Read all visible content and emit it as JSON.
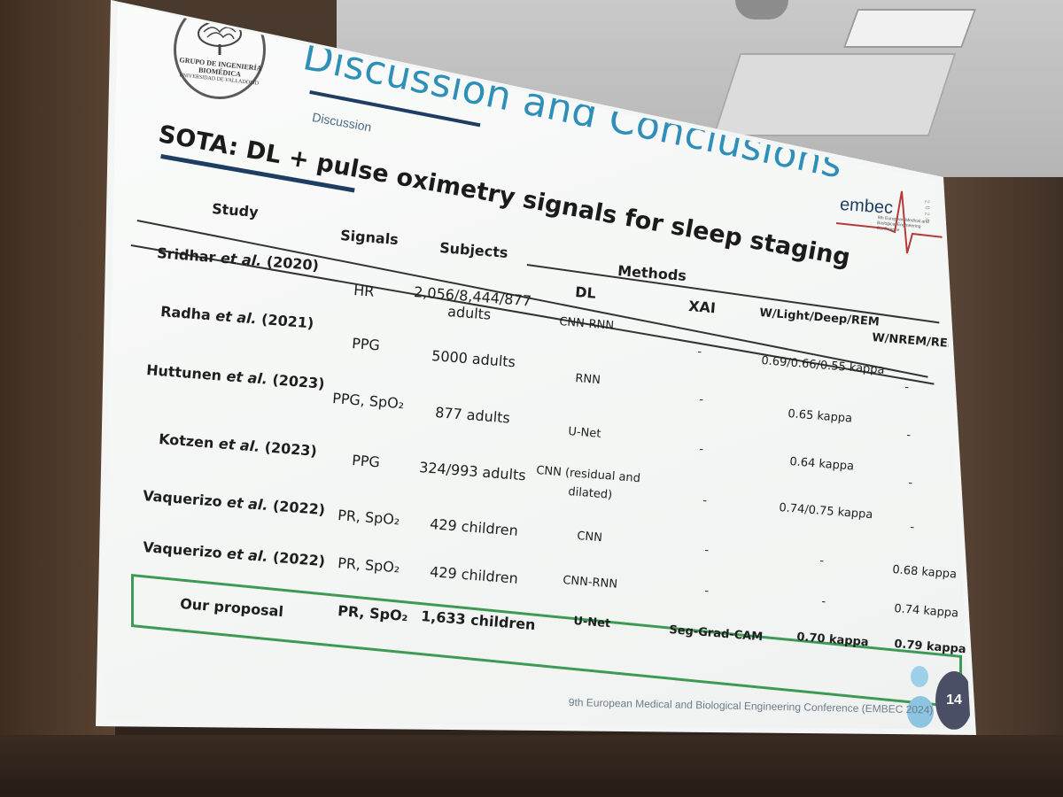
{
  "slide": {
    "title": "Discussion and Conclusions",
    "section": "Discussion",
    "heading": "SOTA: DL + pulse oximetry signals for sleep staging",
    "logo": {
      "line1": "GRUPO DE INGENIERÍA BIOMÉDICA",
      "line2": "UNIVERSIDAD DE VALLADOLID"
    },
    "conference_logo": {
      "word": "embec",
      "small": "9th European Medical and Biological Engineering Conference",
      "year": "2024"
    },
    "footer": "9th European Medical and Biological Engineering Conference (EMBEC 2024)",
    "page_number": "14"
  },
  "table": {
    "headers": {
      "study": "Study",
      "signals": "Signals",
      "subjects": "Subjects",
      "methods": "Methods",
      "dl": "DL",
      "xai": "XAI",
      "wldr": "W/Light/Deep/REM",
      "wnr": "W/NREM/REM"
    },
    "rows": [
      {
        "study_a": "Sridhar ",
        "study_em": "et al.",
        "study_b": " (2020)",
        "signals": "HR",
        "subjects": "2,056/8,444/877",
        "subjects2": "adults",
        "dl": "CNN-RNN",
        "xai": "-",
        "wldr": "0.69/0.66/0.55 kappa",
        "wnr": "-"
      },
      {
        "study_a": "Radha ",
        "study_em": "et al.",
        "study_b": " (2021)",
        "signals": "PPG",
        "subjects": "5000 adults",
        "dl": "RNN",
        "xai": "-",
        "wldr": "0.65 kappa",
        "wnr": "-"
      },
      {
        "study_a": "Huttunen ",
        "study_em": "et al.",
        "study_b": " (2023)",
        "signals": "PPG, SpO₂",
        "subjects": "877 adults",
        "dl": "U-Net",
        "xai": "-",
        "wldr": "0.64 kappa",
        "wnr": "-"
      },
      {
        "study_a": "Kotzen ",
        "study_em": "et al.",
        "study_b": " (2023)",
        "signals": "PPG",
        "subjects": "324/993 adults",
        "dl": "CNN (residual and",
        "dl2": "dilated)",
        "xai": "-",
        "wldr": "0.74/0.75 kappa",
        "wnr": "-"
      },
      {
        "study_a": "Vaquerizo ",
        "study_em": "et al.",
        "study_b": " (2022)",
        "signals": "PR, SpO₂",
        "subjects": "429 children",
        "dl": "CNN",
        "xai": "-",
        "wldr": "-",
        "wnr": "0.68 kappa"
      },
      {
        "study_a": "Vaquerizo ",
        "study_em": "et al.",
        "study_b": " (2022)",
        "signals": "PR, SpO₂",
        "subjects": "429 children",
        "dl": "CNN-RNN",
        "xai": "-",
        "wldr": "-",
        "wnr": "0.74 kappa"
      },
      {
        "study": "Our proposal",
        "signals": "PR, SpO₂",
        "subjects": "1,633 children",
        "dl": "U-Net",
        "xai": "Seg-Grad-CAM",
        "wldr": "0.70 kappa",
        "wnr": "0.79 kappa"
      }
    ]
  }
}
